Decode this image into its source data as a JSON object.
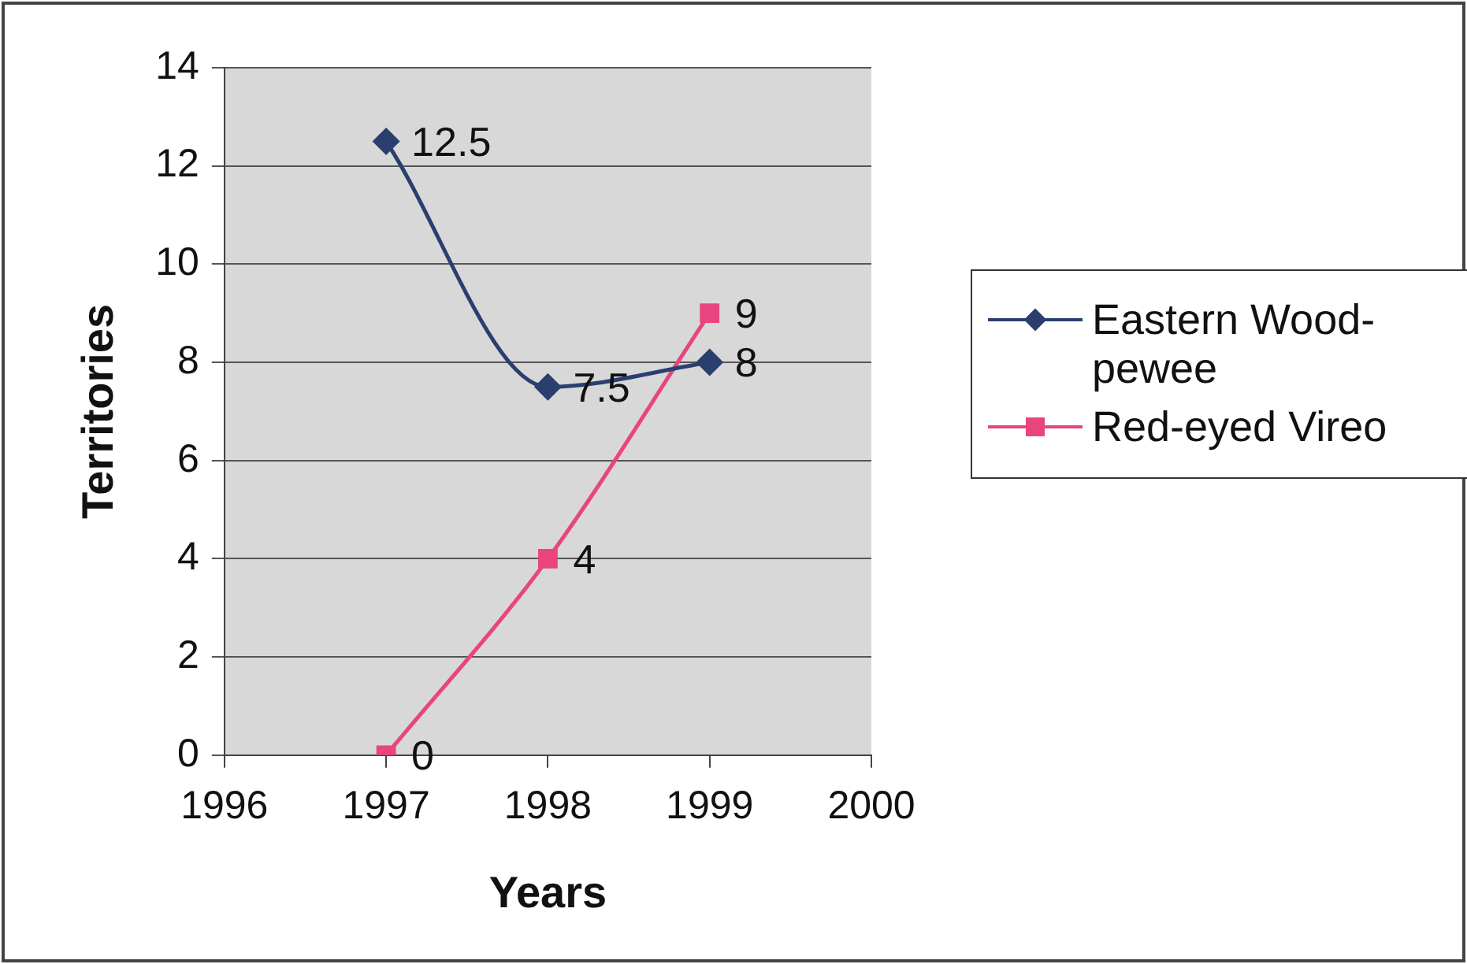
{
  "chart_data": {
    "type": "line",
    "xlabel": "Years",
    "ylabel": "Territories",
    "x": [
      1997,
      1998,
      1999
    ],
    "series": [
      {
        "name": "Eastern Wood-pewee",
        "color": "#2a3f6e",
        "values": [
          12.5,
          7.5,
          8
        ],
        "marker": "diamond"
      },
      {
        "name": "Red-eyed Vireo",
        "color": "#e8457e",
        "values": [
          0,
          4,
          9
        ],
        "marker": "square"
      }
    ],
    "xlim": [
      1996,
      2000
    ],
    "xticks": [
      1996,
      1997,
      1998,
      1999,
      2000
    ],
    "ylim": [
      0,
      14
    ],
    "yticks": [
      0,
      2,
      4,
      6,
      8,
      10,
      12,
      14
    ],
    "grid": "y",
    "legend": "right",
    "data_labels": true
  }
}
